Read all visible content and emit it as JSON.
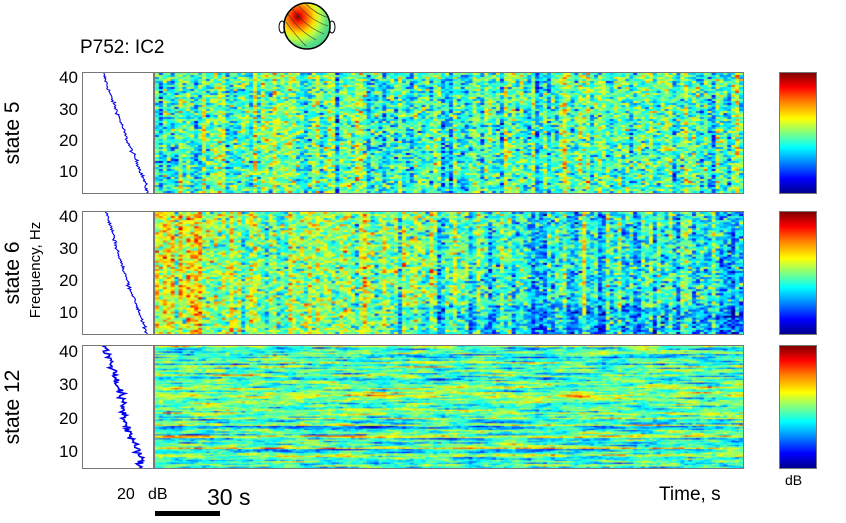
{
  "figure": {
    "title": "P752: IC2",
    "xlabel": "Time, s",
    "ylabel": "Frequency, Hz",
    "psd_unit": "dB",
    "psd_scale_value": "20",
    "colorbar_unit": "dB",
    "time_scale_label": "30 s"
  },
  "chart_data": {
    "type": "heatmap",
    "panels": [
      {
        "name": "state 5",
        "ylim": [
          3,
          42
        ],
        "yticks": [
          10,
          20,
          30,
          40
        ],
        "pattern": "noisy",
        "psd_trend": [
          [
            42,
            0.28
          ],
          [
            35,
            0.38
          ],
          [
            28,
            0.5
          ],
          [
            20,
            0.62
          ],
          [
            13,
            0.76
          ],
          [
            7,
            0.86
          ],
          [
            3,
            0.9
          ]
        ]
      },
      {
        "name": "state 6",
        "ylim": [
          3,
          42
        ],
        "yticks": [
          10,
          20,
          30,
          40
        ],
        "pattern": "noisy-decay",
        "psd_trend": [
          [
            42,
            0.32
          ],
          [
            35,
            0.42
          ],
          [
            28,
            0.5
          ],
          [
            20,
            0.62
          ],
          [
            13,
            0.74
          ],
          [
            7,
            0.84
          ],
          [
            3,
            0.88
          ]
        ]
      },
      {
        "name": "state 12",
        "ylim": [
          5,
          42
        ],
        "yticks": [
          10,
          20,
          30,
          40
        ],
        "pattern": "streaks",
        "psd_trend": [
          [
            42,
            0.3
          ],
          [
            35,
            0.42
          ],
          [
            28,
            0.52
          ],
          [
            20,
            0.58
          ],
          [
            13,
            0.7
          ],
          [
            9,
            0.8
          ],
          [
            5,
            0.78
          ]
        ]
      }
    ],
    "colormap": "jet",
    "grid": false
  }
}
